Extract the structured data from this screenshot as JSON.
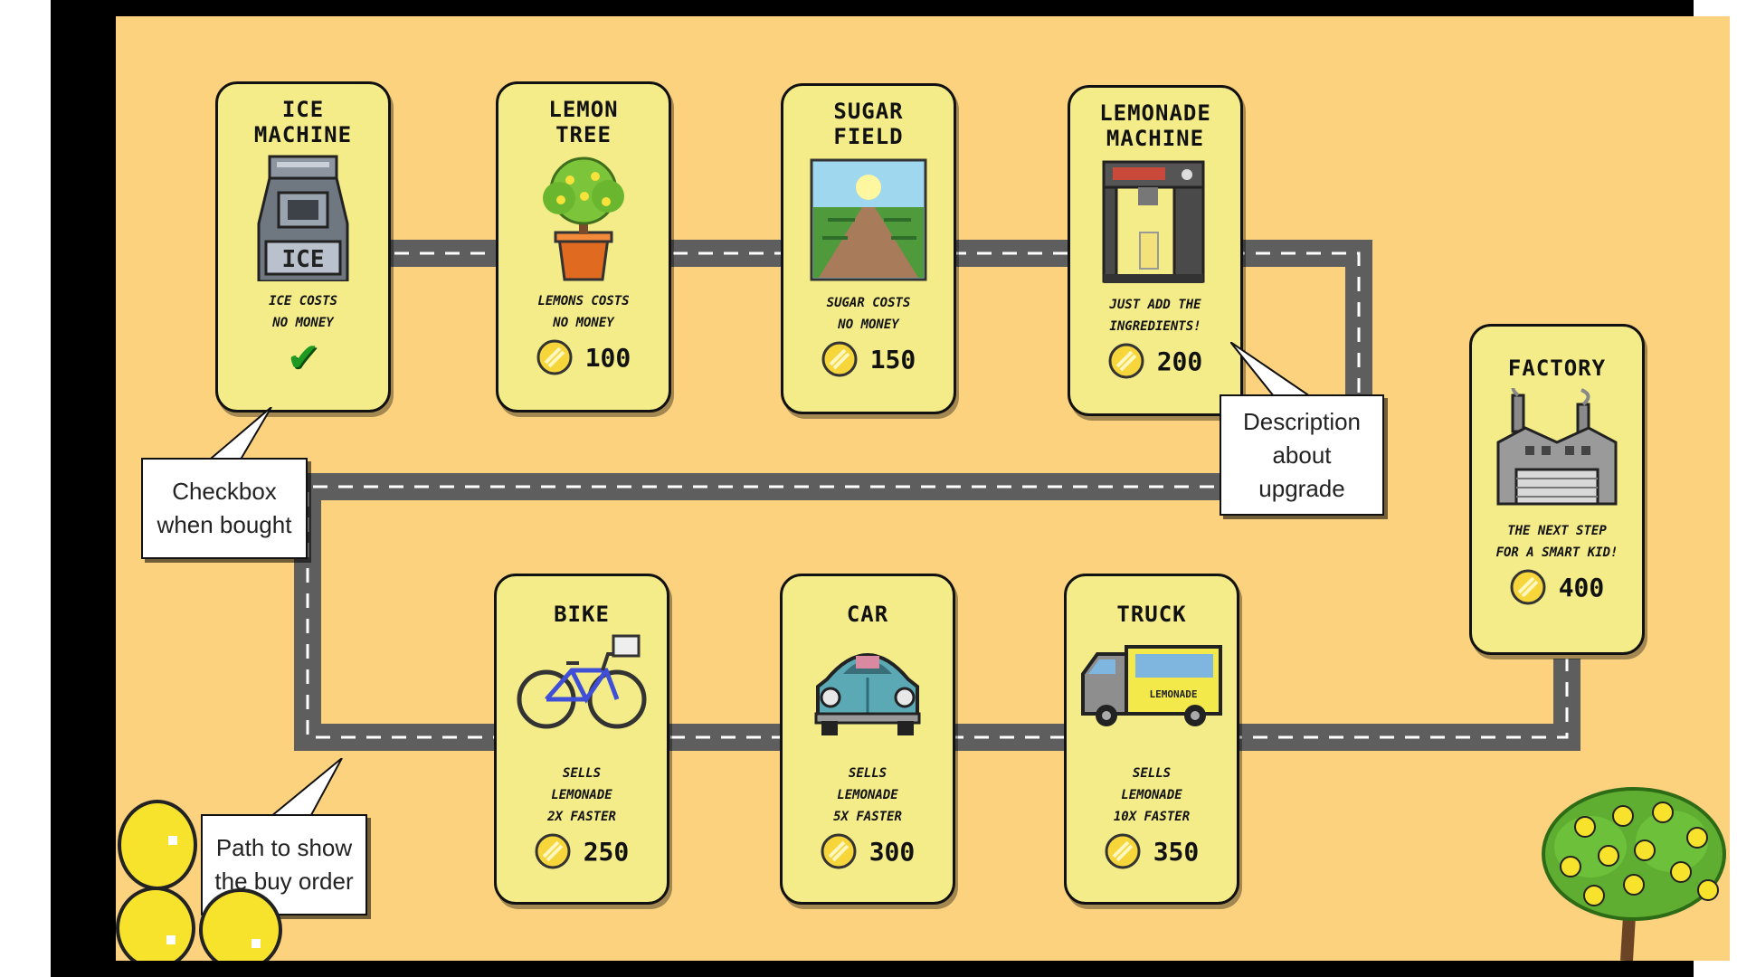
{
  "upgrades": [
    {
      "title": "ICE\nMACHINE",
      "desc": "ICE COSTS\nNO MONEY",
      "price": "",
      "bought": true
    },
    {
      "title": "LEMON\nTREE",
      "desc": "LEMONS COSTS\nNO MONEY",
      "price": "100",
      "bought": false
    },
    {
      "title": "SUGAR\nFIELD",
      "desc": "SUGAR COSTS\nNO MONEY",
      "price": "150",
      "bought": false
    },
    {
      "title": "LEMONADE\nMACHINE",
      "desc": "JUST ADD THE\nINGREDIENTS!",
      "price": "200",
      "bought": false
    },
    {
      "title": "BIKE",
      "desc": "SELLS\nLEMONADE\n2X FASTER",
      "price": "250",
      "bought": false
    },
    {
      "title": "CAR",
      "desc": "SELLS\nLEMONADE\n5X FASTER",
      "price": "300",
      "bought": false
    },
    {
      "title": "TRUCK",
      "desc": "SELLS\nLEMONADE\n10X FASTER",
      "price": "350",
      "bought": false
    },
    {
      "title": "FACTORY",
      "desc": "THE NEXT STEP\nFOR A SMART KID!",
      "price": "400",
      "bought": false
    }
  ],
  "art_labels": {
    "ice": "ICE",
    "truck": "LEMONADE"
  },
  "callouts": {
    "checkbox": "Checkbox\nwhen bought",
    "description": "Description\nabout\nupgrade",
    "path": "Path to show\nthe buy order"
  },
  "icons": {
    "close": "close-icon",
    "coin": "coin-icon",
    "check": "checkmark-icon"
  },
  "colors": {
    "background": "#fcd27f",
    "card": "#f3ec88",
    "road": "#6b6b6b",
    "check": "#1e9a22"
  }
}
